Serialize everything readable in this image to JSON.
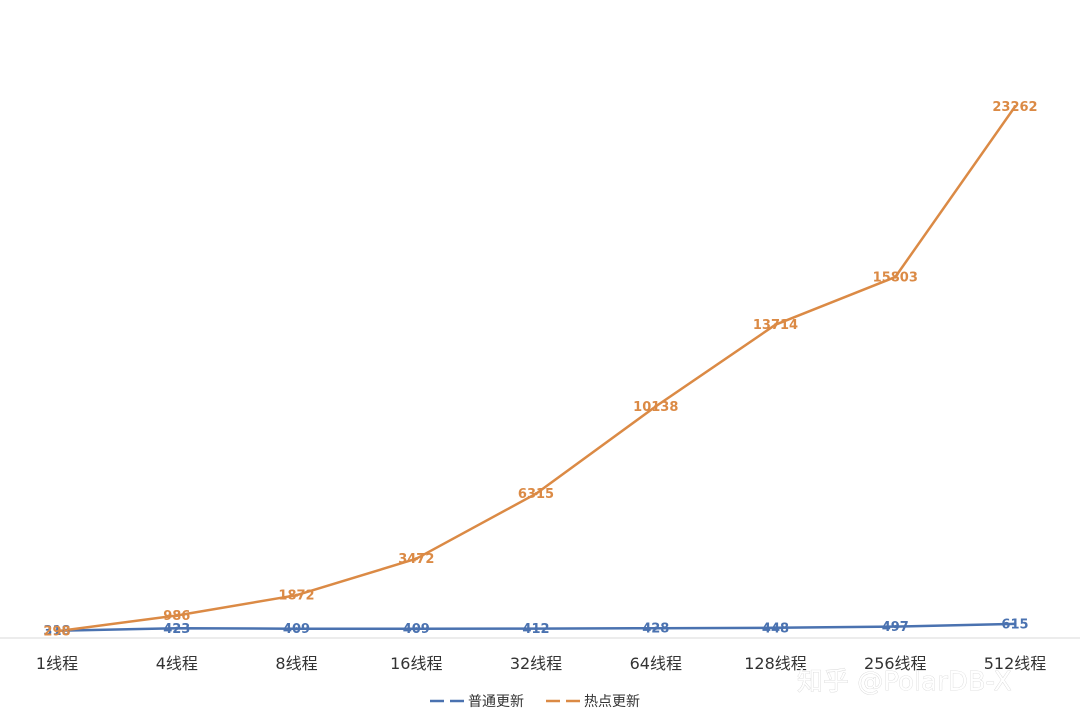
{
  "chart_data": {
    "type": "line",
    "categories": [
      "1线程",
      "4线程",
      "8线程",
      "16线程",
      "32线程",
      "64线程",
      "128线程",
      "256线程",
      "512线程"
    ],
    "series": [
      {
        "name": "普通更新",
        "color": "#4a72b0",
        "values": [
          318,
          423,
          409,
          409,
          412,
          428,
          448,
          497,
          615
        ]
      },
      {
        "name": "热点更新",
        "color": "#db8a45",
        "values": [
          298,
          986,
          1872,
          3472,
          6315,
          10138,
          13714,
          15803,
          23262
        ]
      }
    ],
    "title": "",
    "xlabel": "",
    "ylabel": "",
    "ylim": [
      0,
      26000
    ],
    "grid": false,
    "legend_position": "bottom"
  },
  "watermark": {
    "text": "知乎 @PolarDB-X"
  }
}
